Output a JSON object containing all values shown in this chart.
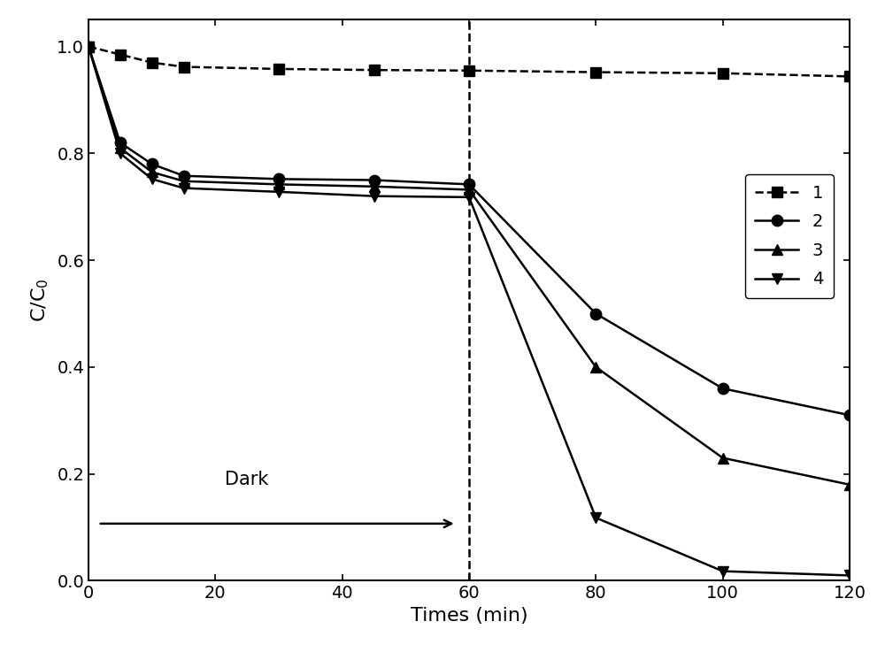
{
  "series": [
    {
      "label": "1",
      "marker": "s",
      "linestyle": "--",
      "x": [
        0,
        5,
        10,
        15,
        30,
        45,
        60,
        80,
        100,
        120
      ],
      "y": [
        1.0,
        0.985,
        0.97,
        0.962,
        0.958,
        0.956,
        0.955,
        0.952,
        0.95,
        0.944
      ]
    },
    {
      "label": "2",
      "marker": "o",
      "linestyle": "-",
      "x": [
        0,
        5,
        10,
        15,
        30,
        45,
        60,
        80,
        100,
        120
      ],
      "y": [
        1.0,
        0.82,
        0.78,
        0.758,
        0.752,
        0.75,
        0.742,
        0.5,
        0.36,
        0.31
      ]
    },
    {
      "label": "3",
      "marker": "^",
      "linestyle": "-",
      "x": [
        0,
        5,
        10,
        15,
        30,
        45,
        60,
        80,
        100,
        120
      ],
      "y": [
        1.0,
        0.81,
        0.765,
        0.748,
        0.742,
        0.738,
        0.732,
        0.4,
        0.23,
        0.18
      ]
    },
    {
      "label": "4",
      "marker": "v",
      "linestyle": "-",
      "x": [
        0,
        5,
        10,
        15,
        30,
        45,
        60,
        80,
        100,
        120
      ],
      "y": [
        1.0,
        0.8,
        0.752,
        0.735,
        0.728,
        0.72,
        0.718,
        0.118,
        0.018,
        0.01
      ]
    }
  ],
  "xlabel": "Times (min)",
  "ylabel": "C/C",
  "ylabel_sub": "0",
  "xlim": [
    0,
    120
  ],
  "ylim": [
    0.0,
    1.05
  ],
  "yticks": [
    0.0,
    0.2,
    0.4,
    0.6,
    0.8,
    1.0
  ],
  "xticks": [
    0,
    20,
    40,
    60,
    80,
    100,
    120
  ],
  "vline_x": 60,
  "color": "black",
  "markersize": 9,
  "linewidth": 1.8,
  "fontsize_axis_label": 16,
  "fontsize_tick": 14,
  "fontsize_legend": 14,
  "fontsize_annotation": 15
}
